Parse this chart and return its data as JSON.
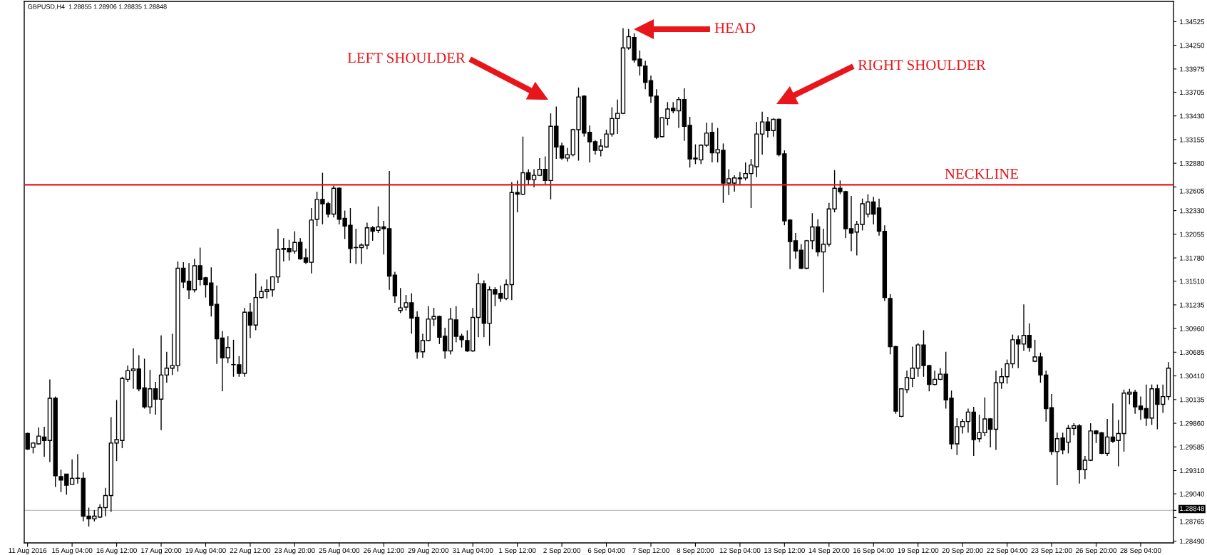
{
  "chart_data": {
    "type": "candlestick",
    "title": "GBPUSD,H4  1.28855 1.28906 1.28835 1.28848",
    "categories": [
      "11 Aug 2016",
      null,
      null,
      null,
      null,
      null,
      null,
      null,
      "15 Aug 04:00",
      null,
      null,
      null,
      null,
      null,
      null,
      null,
      "16 Aug 12:00",
      null,
      null,
      null,
      null,
      null,
      null,
      null,
      "17 Aug 20:00",
      null,
      null,
      null,
      null,
      null,
      null,
      null,
      "19 Aug 04:00",
      null,
      null,
      null,
      null,
      null,
      null,
      null,
      "22 Aug 12:00",
      null,
      null,
      null,
      null,
      null,
      null,
      null,
      "23 Aug 20:00",
      null,
      null,
      null,
      null,
      null,
      null,
      null,
      "25 Aug 04:00",
      null,
      null,
      null,
      null,
      null,
      null,
      null,
      "26 Aug 12:00",
      null,
      null,
      null,
      null,
      null,
      null,
      null,
      "29 Aug 20:00",
      null,
      null,
      null,
      null,
      null,
      null,
      null,
      "31 Aug 04:00",
      null,
      null,
      null,
      null,
      null,
      null,
      null,
      "1 Sep 12:00",
      null,
      null,
      null,
      null,
      null,
      null,
      null,
      "2 Sep 20:00",
      null,
      null,
      null,
      null,
      null,
      null,
      null,
      "6 Sep 04:00",
      null,
      null,
      null,
      null,
      null,
      null,
      null,
      "7 Sep 12:00",
      null,
      null,
      null,
      null,
      null,
      null,
      null,
      "8 Sep 20:00",
      null,
      null,
      null,
      null,
      null,
      null,
      null,
      "12 Sep 04:00",
      null,
      null,
      null,
      null,
      null,
      null,
      null,
      "13 Sep 12:00",
      null,
      null,
      null,
      null,
      null,
      null,
      null,
      "14 Sep 20:00",
      null,
      null,
      null,
      null,
      null,
      null,
      null,
      "16 Sep 04:00",
      null,
      null,
      null,
      null,
      null,
      null,
      null,
      "19 Sep 12:00",
      null,
      null,
      null,
      null,
      null,
      null,
      null,
      "20 Sep 20:00",
      null,
      null,
      null,
      null,
      null,
      null,
      null,
      "22 Sep 04:00",
      null,
      null,
      null,
      null,
      null,
      null,
      null,
      "23 Sep 12:00",
      null,
      null,
      null,
      null,
      null,
      null,
      null,
      "26 Sep 20:00",
      null,
      null,
      null,
      null,
      null,
      null,
      null,
      "28 Sep 04:00",
      null,
      null,
      null,
      null,
      null
    ],
    "ohlc": [
      [
        1.2974,
        1.2975,
        1.2955,
        1.2956
      ],
      [
        1.2958,
        1.2964,
        1.2951,
        1.2963
      ],
      [
        1.2962,
        1.2981,
        1.2961,
        1.2971
      ],
      [
        1.297,
        1.2982,
        1.2947,
        1.2966
      ],
      [
        1.2966,
        1.3037,
        1.2941,
        1.3015
      ],
      [
        1.3015,
        1.3017,
        1.2912,
        1.2925
      ],
      [
        1.2924,
        1.2932,
        1.2906,
        1.292
      ],
      [
        1.2927,
        1.2927,
        1.2903,
        1.2914
      ],
      [
        1.2915,
        1.2944,
        1.2915,
        1.2922
      ],
      [
        1.2922,
        1.295,
        1.2916,
        1.2922
      ],
      [
        1.2922,
        1.2929,
        1.2872,
        1.2878
      ],
      [
        1.2878,
        1.2888,
        1.2866,
        1.2875
      ],
      [
        1.2875,
        1.2885,
        1.2872,
        1.2878
      ],
      [
        1.2877,
        1.2892,
        1.2876,
        1.2888
      ],
      [
        1.2888,
        1.2911,
        1.2878,
        1.2902
      ],
      [
        1.2902,
        1.2993,
        1.2883,
        1.2963
      ],
      [
        1.2963,
        1.3013,
        1.2942,
        1.2967
      ],
      [
        1.2966,
        1.304,
        1.2957,
        1.3038
      ],
      [
        1.3037,
        1.3053,
        1.3034,
        1.3047
      ],
      [
        1.3047,
        1.3073,
        1.3026,
        1.3049
      ],
      [
        1.3049,
        1.3065,
        1.3023,
        1.3026
      ],
      [
        1.3027,
        1.3061,
        1.3003,
        1.3005
      ],
      [
        1.3005,
        1.3048,
        1.2997,
        1.3026
      ],
      [
        1.3026,
        1.3034,
        1.2996,
        1.3014
      ],
      [
        1.3014,
        1.3088,
        1.2978,
        1.3042
      ],
      [
        1.3042,
        1.3069,
        1.3033,
        1.305
      ],
      [
        1.305,
        1.309,
        1.3042,
        1.3053
      ],
      [
        1.3053,
        1.3174,
        1.3046,
        1.3166
      ],
      [
        1.3166,
        1.3173,
        1.3143,
        1.315
      ],
      [
        1.3151,
        1.3172,
        1.313,
        1.3141
      ],
      [
        1.3141,
        1.3177,
        1.3138,
        1.3169
      ],
      [
        1.3169,
        1.319,
        1.3146,
        1.3153
      ],
      [
        1.3155,
        1.3156,
        1.3132,
        1.3147
      ],
      [
        1.3149,
        1.3167,
        1.311,
        1.3123
      ],
      [
        1.3124,
        1.3146,
        1.3055,
        1.3084
      ],
      [
        1.3085,
        1.3093,
        1.3023,
        1.3062
      ],
      [
        1.3062,
        1.3087,
        1.3056,
        1.3074
      ],
      [
        1.3054,
        1.3083,
        1.304,
        1.3054
      ],
      [
        1.3054,
        1.3064,
        1.304,
        1.3044
      ],
      [
        1.3044,
        1.312,
        1.304,
        1.3115
      ],
      [
        1.3115,
        1.3126,
        1.3085,
        1.31
      ],
      [
        1.31,
        1.316,
        1.3094,
        1.3132
      ],
      [
        1.3132,
        1.3145,
        1.3131,
        1.3139
      ],
      [
        1.3139,
        1.3153,
        1.3131,
        1.3141
      ],
      [
        1.3141,
        1.3157,
        1.3133,
        1.3156
      ],
      [
        1.3156,
        1.3212,
        1.3149,
        1.3188
      ],
      [
        1.3189,
        1.3201,
        1.3174,
        1.3188
      ],
      [
        1.3189,
        1.3199,
        1.3175,
        1.3185
      ],
      [
        1.3186,
        1.3209,
        1.3183,
        1.3196
      ],
      [
        1.3196,
        1.3201,
        1.3176,
        1.3177
      ],
      [
        1.3178,
        1.3189,
        1.3171,
        1.3173
      ],
      [
        1.3173,
        1.3236,
        1.316,
        1.3222
      ],
      [
        1.3223,
        1.3255,
        1.3215,
        1.3246
      ],
      [
        1.3246,
        1.3277,
        1.3217,
        1.3241
      ],
      [
        1.3241,
        1.3243,
        1.3225,
        1.3229
      ],
      [
        1.3229,
        1.3262,
        1.3225,
        1.3259
      ],
      [
        1.3259,
        1.326,
        1.3217,
        1.3223
      ],
      [
        1.3224,
        1.3233,
        1.32,
        1.3215
      ],
      [
        1.3216,
        1.3236,
        1.3172,
        1.3189
      ],
      [
        1.319,
        1.3212,
        1.3171,
        1.319
      ],
      [
        1.319,
        1.3195,
        1.3171,
        1.3193
      ],
      [
        1.3193,
        1.3219,
        1.3188,
        1.3213
      ],
      [
        1.3213,
        1.3215,
        1.3198,
        1.3209
      ],
      [
        1.321,
        1.3238,
        1.3207,
        1.3214
      ],
      [
        1.3214,
        1.3221,
        1.3182,
        1.3212
      ],
      [
        1.3212,
        1.3279,
        1.3141,
        1.3157
      ],
      [
        1.3158,
        1.3162,
        1.3126,
        1.3134
      ],
      [
        1.3117,
        1.3143,
        1.3114,
        1.312
      ],
      [
        1.3121,
        1.3135,
        1.3117,
        1.3126
      ],
      [
        1.3126,
        1.3137,
        1.309,
        1.3108
      ],
      [
        1.3109,
        1.3116,
        1.3061,
        1.3069
      ],
      [
        1.3069,
        1.309,
        1.3062,
        1.3082
      ],
      [
        1.3082,
        1.3122,
        1.3081,
        1.3107
      ],
      [
        1.3107,
        1.312,
        1.3099,
        1.311
      ],
      [
        1.311,
        1.3111,
        1.3078,
        1.3086
      ],
      [
        1.3087,
        1.3097,
        1.3061,
        1.307
      ],
      [
        1.307,
        1.312,
        1.3066,
        1.3107
      ],
      [
        1.3106,
        1.3122,
        1.308,
        1.3087
      ],
      [
        1.3087,
        1.309,
        1.3074,
        1.3083
      ],
      [
        1.3082,
        1.3094,
        1.3069,
        1.307
      ],
      [
        1.307,
        1.312,
        1.3069,
        1.3109
      ],
      [
        1.3109,
        1.316,
        1.3086,
        1.3148
      ],
      [
        1.3148,
        1.3152,
        1.3086,
        1.3102
      ],
      [
        1.3102,
        1.3145,
        1.3076,
        1.3141
      ],
      [
        1.3141,
        1.3144,
        1.3122,
        1.3136
      ],
      [
        1.3137,
        1.3146,
        1.3127,
        1.3131
      ],
      [
        1.3131,
        1.3153,
        1.3129,
        1.3147
      ],
      [
        1.3147,
        1.3266,
        1.3129,
        1.3254
      ],
      [
        1.3254,
        1.3268,
        1.3231,
        1.3252
      ],
      [
        1.3252,
        1.3319,
        1.3251,
        1.3277
      ],
      [
        1.3277,
        1.3281,
        1.3263,
        1.3269
      ],
      [
        1.3269,
        1.3281,
        1.326,
        1.3274
      ],
      [
        1.3274,
        1.3294,
        1.3273,
        1.3281
      ],
      [
        1.3281,
        1.3296,
        1.3263,
        1.3268
      ],
      [
        1.3268,
        1.3346,
        1.3246,
        1.3331
      ],
      [
        1.3331,
        1.3354,
        1.3293,
        1.3307
      ],
      [
        1.3308,
        1.3312,
        1.3292,
        1.3294
      ],
      [
        1.3294,
        1.3306,
        1.329,
        1.3298
      ],
      [
        1.3298,
        1.3328,
        1.3296,
        1.3327
      ],
      [
        1.3327,
        1.3376,
        1.3291,
        1.3365
      ],
      [
        1.3366,
        1.3367,
        1.3319,
        1.3323
      ],
      [
        1.3324,
        1.3332,
        1.3289,
        1.3313
      ],
      [
        1.3313,
        1.3315,
        1.3298,
        1.3303
      ],
      [
        1.3303,
        1.3316,
        1.3296,
        1.3308
      ],
      [
        1.3307,
        1.3327,
        1.3306,
        1.3322
      ],
      [
        1.3322,
        1.3353,
        1.3319,
        1.334
      ],
      [
        1.334,
        1.3362,
        1.3322,
        1.3346
      ],
      [
        1.3346,
        1.3445,
        1.3345,
        1.3422
      ],
      [
        1.3422,
        1.3444,
        1.342,
        1.3435
      ],
      [
        1.3434,
        1.3439,
        1.3405,
        1.3408
      ],
      [
        1.3409,
        1.3419,
        1.339,
        1.3401
      ],
      [
        1.3401,
        1.3407,
        1.3374,
        1.3382
      ],
      [
        1.3384,
        1.339,
        1.3358,
        1.3366
      ],
      [
        1.3366,
        1.3374,
        1.3316,
        1.3318
      ],
      [
        1.3319,
        1.3342,
        1.3318,
        1.3341
      ],
      [
        1.334,
        1.3359,
        1.3332,
        1.3351
      ],
      [
        1.3352,
        1.3359,
        1.3346,
        1.3349
      ],
      [
        1.3349,
        1.3365,
        1.3329,
        1.3362
      ],
      [
        1.3362,
        1.3375,
        1.3314,
        1.3331
      ],
      [
        1.3332,
        1.3342,
        1.3283,
        1.3293
      ],
      [
        1.3294,
        1.331,
        1.3287,
        1.3293
      ],
      [
        1.3292,
        1.331,
        1.3287,
        1.3309
      ],
      [
        1.3309,
        1.3335,
        1.3307,
        1.3323
      ],
      [
        1.3324,
        1.3335,
        1.3289,
        1.33
      ],
      [
        1.33,
        1.3329,
        1.3289,
        1.3304
      ],
      [
        1.3303,
        1.3311,
        1.3242,
        1.3265
      ],
      [
        1.3265,
        1.3281,
        1.3251,
        1.327
      ],
      [
        1.3265,
        1.3274,
        1.3255,
        1.3271
      ],
      [
        1.327,
        1.3278,
        1.3263,
        1.3271
      ],
      [
        1.3271,
        1.3289,
        1.3268,
        1.3276
      ],
      [
        1.3276,
        1.3293,
        1.3236,
        1.3286
      ],
      [
        1.3284,
        1.3336,
        1.3272,
        1.3322
      ],
      [
        1.3322,
        1.3348,
        1.3298,
        1.3336
      ],
      [
        1.3336,
        1.3342,
        1.3318,
        1.3326
      ],
      [
        1.3326,
        1.334,
        1.3319,
        1.3339
      ],
      [
        1.3339,
        1.334,
        1.3296,
        1.3298
      ],
      [
        1.3299,
        1.3303,
        1.3216,
        1.3221
      ],
      [
        1.3222,
        1.3223,
        1.3165,
        1.3197
      ],
      [
        1.3198,
        1.3207,
        1.3177,
        1.3186
      ],
      [
        1.3187,
        1.3194,
        1.3165,
        1.3166
      ],
      [
        1.3166,
        1.3199,
        1.3165,
        1.3198
      ],
      [
        1.3198,
        1.323,
        1.3188,
        1.3214
      ],
      [
        1.3214,
        1.3223,
        1.318,
        1.3185
      ],
      [
        1.3185,
        1.3212,
        1.3138,
        1.3194
      ],
      [
        1.3194,
        1.3242,
        1.3191,
        1.3235
      ],
      [
        1.3235,
        1.328,
        1.3231,
        1.3259
      ],
      [
        1.3259,
        1.3268,
        1.3252,
        1.3255
      ],
      [
        1.3255,
        1.3256,
        1.3201,
        1.3212
      ],
      [
        1.3212,
        1.325,
        1.3186,
        1.3207
      ],
      [
        1.3208,
        1.3221,
        1.3181,
        1.3217
      ],
      [
        1.3217,
        1.3247,
        1.321,
        1.3241
      ],
      [
        1.3229,
        1.3252,
        1.3225,
        1.3243
      ],
      [
        1.3243,
        1.3249,
        1.3217,
        1.3229
      ],
      [
        1.3236,
        1.3247,
        1.3204,
        1.3209
      ],
      [
        1.3209,
        1.3216,
        1.3128,
        1.3132
      ],
      [
        1.3131,
        1.3136,
        1.3066,
        1.3075
      ],
      [
        1.3075,
        1.3076,
        1.2997,
        1.3
      ],
      [
        1.2994,
        1.3026,
        1.2993,
        1.3026
      ],
      [
        1.3025,
        1.3047,
        1.3021,
        1.3039
      ],
      [
        1.3038,
        1.3075,
        1.3028,
        1.305
      ],
      [
        1.305,
        1.3079,
        1.304,
        1.3077
      ],
      [
        1.3077,
        1.3094,
        1.304,
        1.3053
      ],
      [
        1.3053,
        1.3054,
        1.3023,
        1.3031
      ],
      [
        1.3031,
        1.3047,
        1.303,
        1.3037
      ],
      [
        1.3037,
        1.305,
        1.3036,
        1.3043
      ],
      [
        1.3043,
        1.3069,
        1.3003,
        1.3013
      ],
      [
        1.3015,
        1.3024,
        1.2956,
        1.2962
      ],
      [
        1.2962,
        1.2992,
        1.2949,
        1.2982
      ],
      [
        1.2982,
        1.2991,
        1.2974,
        1.2988
      ],
      [
        1.2988,
        1.3003,
        1.2975,
        1.2999
      ],
      [
        1.2999,
        1.3005,
        1.2948,
        1.2967
      ],
      [
        1.2968,
        1.2996,
        1.2964,
        1.2975
      ],
      [
        1.2975,
        1.3016,
        1.2971,
        1.2991
      ],
      [
        1.2991,
        1.2992,
        1.2958,
        1.2979
      ],
      [
        1.2979,
        1.3047,
        1.2955,
        1.3033
      ],
      [
        1.3033,
        1.305,
        1.3026,
        1.304
      ],
      [
        1.304,
        1.306,
        1.3032,
        1.3055
      ],
      [
        1.3055,
        1.3089,
        1.305,
        1.3083
      ],
      [
        1.3083,
        1.3088,
        1.305,
        1.3078
      ],
      [
        1.3078,
        1.3124,
        1.307,
        1.3088
      ],
      [
        1.3088,
        1.3102,
        1.3069,
        1.3074
      ],
      [
        1.3058,
        1.3083,
        1.3057,
        1.3063
      ],
      [
        1.3063,
        1.3068,
        1.3033,
        1.3042
      ],
      [
        1.3042,
        1.3047,
        1.2988,
        1.3003
      ],
      [
        1.3004,
        1.302,
        1.2949,
        1.2953
      ],
      [
        1.2953,
        1.2975,
        1.2914,
        1.2968
      ],
      [
        1.2969,
        1.2975,
        1.295,
        1.2955
      ],
      [
        1.2964,
        1.2984,
        1.2951,
        1.298
      ],
      [
        1.298,
        1.2986,
        1.2972,
        1.2983
      ],
      [
        1.2983,
        1.2985,
        1.2916,
        1.2932
      ],
      [
        1.2932,
        1.2948,
        1.2921,
        1.2943
      ],
      [
        1.2943,
        1.2986,
        1.2942,
        1.2977
      ],
      [
        1.2977,
        1.2978,
        1.2963,
        1.2974
      ],
      [
        1.2975,
        1.2976,
        1.295,
        1.2951
      ],
      [
        1.2951,
        1.2991,
        1.2948,
        1.297
      ],
      [
        1.297,
        1.3009,
        1.2963,
        1.2965
      ],
      [
        1.2966,
        1.299,
        1.2936,
        1.2974
      ],
      [
        1.2974,
        1.3025,
        1.2953,
        1.3021
      ],
      [
        1.302,
        1.3026,
        1.3008,
        1.3022
      ],
      [
        1.3022,
        1.3025,
        1.2997,
        1.3005
      ],
      [
        1.3006,
        1.3017,
        1.299,
        1.3002
      ],
      [
        1.3003,
        1.3031,
        1.2983,
        1.2992
      ],
      [
        1.2992,
        1.3031,
        1.2984,
        1.3026
      ],
      [
        1.3026,
        1.3031,
        1.2979,
        1.3008
      ],
      [
        1.3008,
        1.3031,
        1.2998,
        1.3017
      ],
      [
        1.3017,
        1.3057,
        1.3013,
        1.305
      ]
    ],
    "ylim": [
      1.2847,
      1.3476
    ],
    "yticks": [
      {
        "value": 1.2849,
        "label": "1.28490"
      },
      1.28765,
      {
        "value": 1.28848,
        "label": "1.28848"
      },
      {
        "value": 1.2904,
        "label": "1.29040"
      },
      {
        "value": 1.2931,
        "label": "1.29310"
      },
      1.29585,
      {
        "value": 1.2986,
        "label": "1.29860"
      },
      1.30135,
      {
        "value": 1.3041,
        "label": "1.30410"
      },
      1.30685,
      {
        "value": 1.3096,
        "label": "1.30960"
      },
      1.31235,
      {
        "value": 1.3151,
        "label": "1.31510"
      },
      {
        "value": 1.3178,
        "label": "1.31780"
      },
      1.32055,
      {
        "value": 1.3233,
        "label": "1.32330"
      },
      1.32605,
      {
        "value": 1.3288,
        "label": "1.32880"
      },
      1.33155,
      {
        "value": 1.3343,
        "label": "1.33430"
      },
      1.33705,
      1.33975,
      {
        "value": 1.3425,
        "label": "1.34250"
      },
      1.34525
    ],
    "ref_lines": [
      {
        "axis": "y",
        "value": 1.3263,
        "label": "NECKLINE",
        "color": "#e8161b"
      },
      {
        "axis": "y",
        "value": 1.28848,
        "color": "#c0c0c0"
      }
    ],
    "annotations": [
      "LEFT SHOULDER",
      "HEAD",
      "RIGHT SHOULDER"
    ]
  }
}
